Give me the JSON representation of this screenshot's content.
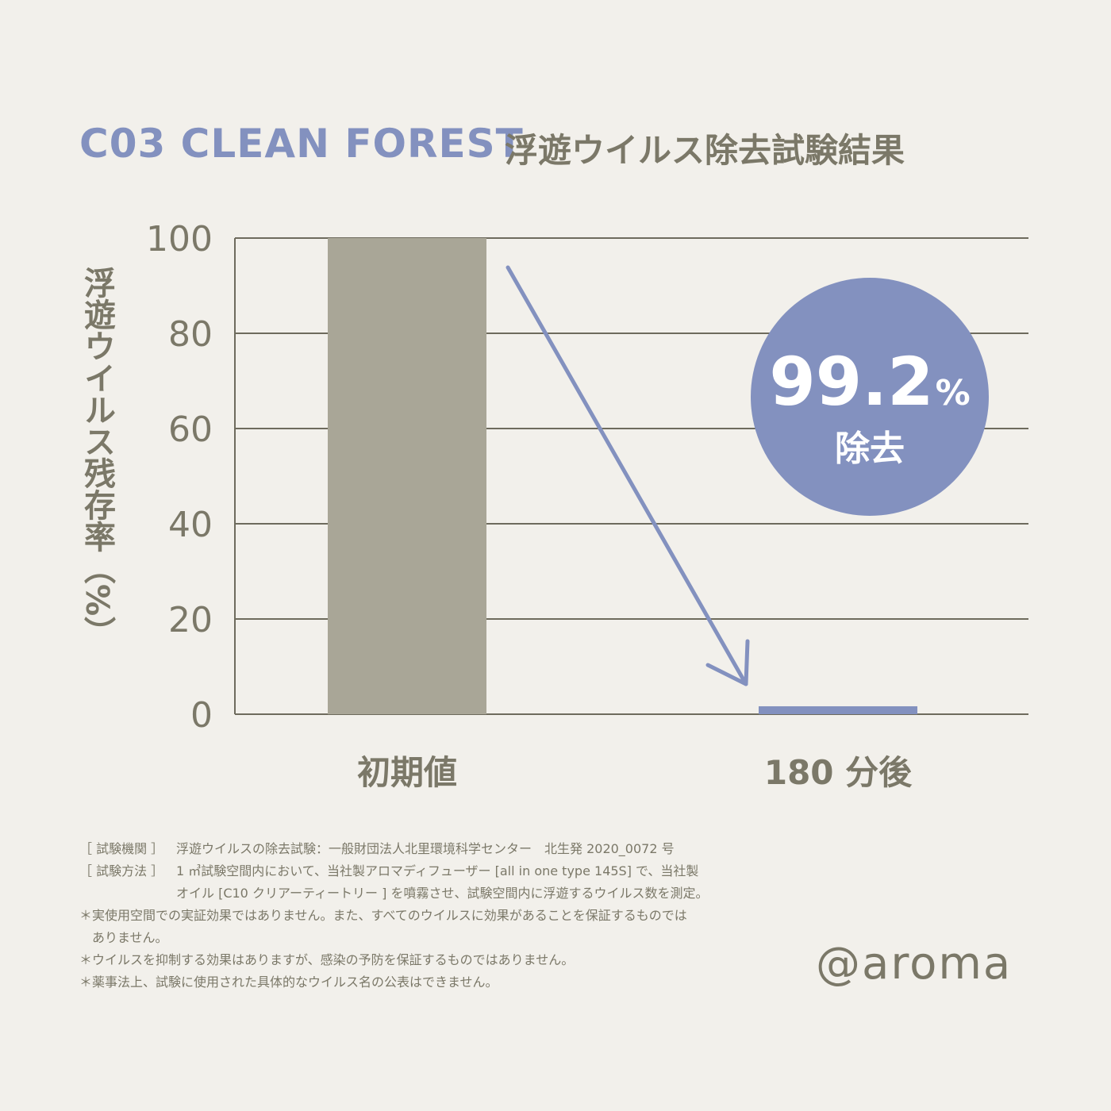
{
  "header": {
    "product": "C03 CLEAN FOREST",
    "title": "浮遊ウイルス除去試験結果"
  },
  "chart_data": {
    "type": "bar",
    "categories": [
      "初期値",
      "180 分後"
    ],
    "values": [
      100,
      0.8
    ],
    "xlabel": "",
    "ylabel": "浮遊ウイルス残存率（%）",
    "ylim": [
      0,
      100
    ],
    "yticks": [
      0,
      20,
      40,
      60,
      80,
      100
    ],
    "grid": true,
    "colors": [
      "#a9a697",
      "#8391bf"
    ]
  },
  "badge": {
    "value": "99.2",
    "unit": "%",
    "label": "除去",
    "color": "#8391bf"
  },
  "notes": [
    {
      "key": "［ 試験機関 ］",
      "text": "浮遊ウイルスの除去試験：一般財団法人北里環境科学センター　北生発 2020_0072 号"
    },
    {
      "key": "［ 試験方法 ］",
      "text": "1 ㎥試験空間内において、当社製アロマディフューザー [all in one type 145S] で、当社製"
    },
    {
      "key": "",
      "text": "オイル [C10 クリアーティートリー ] を噴霧させ、試験空間内に浮遊するウイルス数を測定。"
    },
    {
      "key": "",
      "text": "＊実使用空間での実証効果ではありません。また、すべてのウイルスに効果があることを保証するものでは"
    },
    {
      "key": "",
      "text": "ありません。"
    },
    {
      "key": "",
      "text": "＊ウイルスを抑制する効果はありますが、感染の予防を保証するものではありません。"
    },
    {
      "key": "",
      "text": "＊薬事法上、試験に使用された具体的なウイルス名の公表はできません。"
    }
  ],
  "brand": "@aroma"
}
